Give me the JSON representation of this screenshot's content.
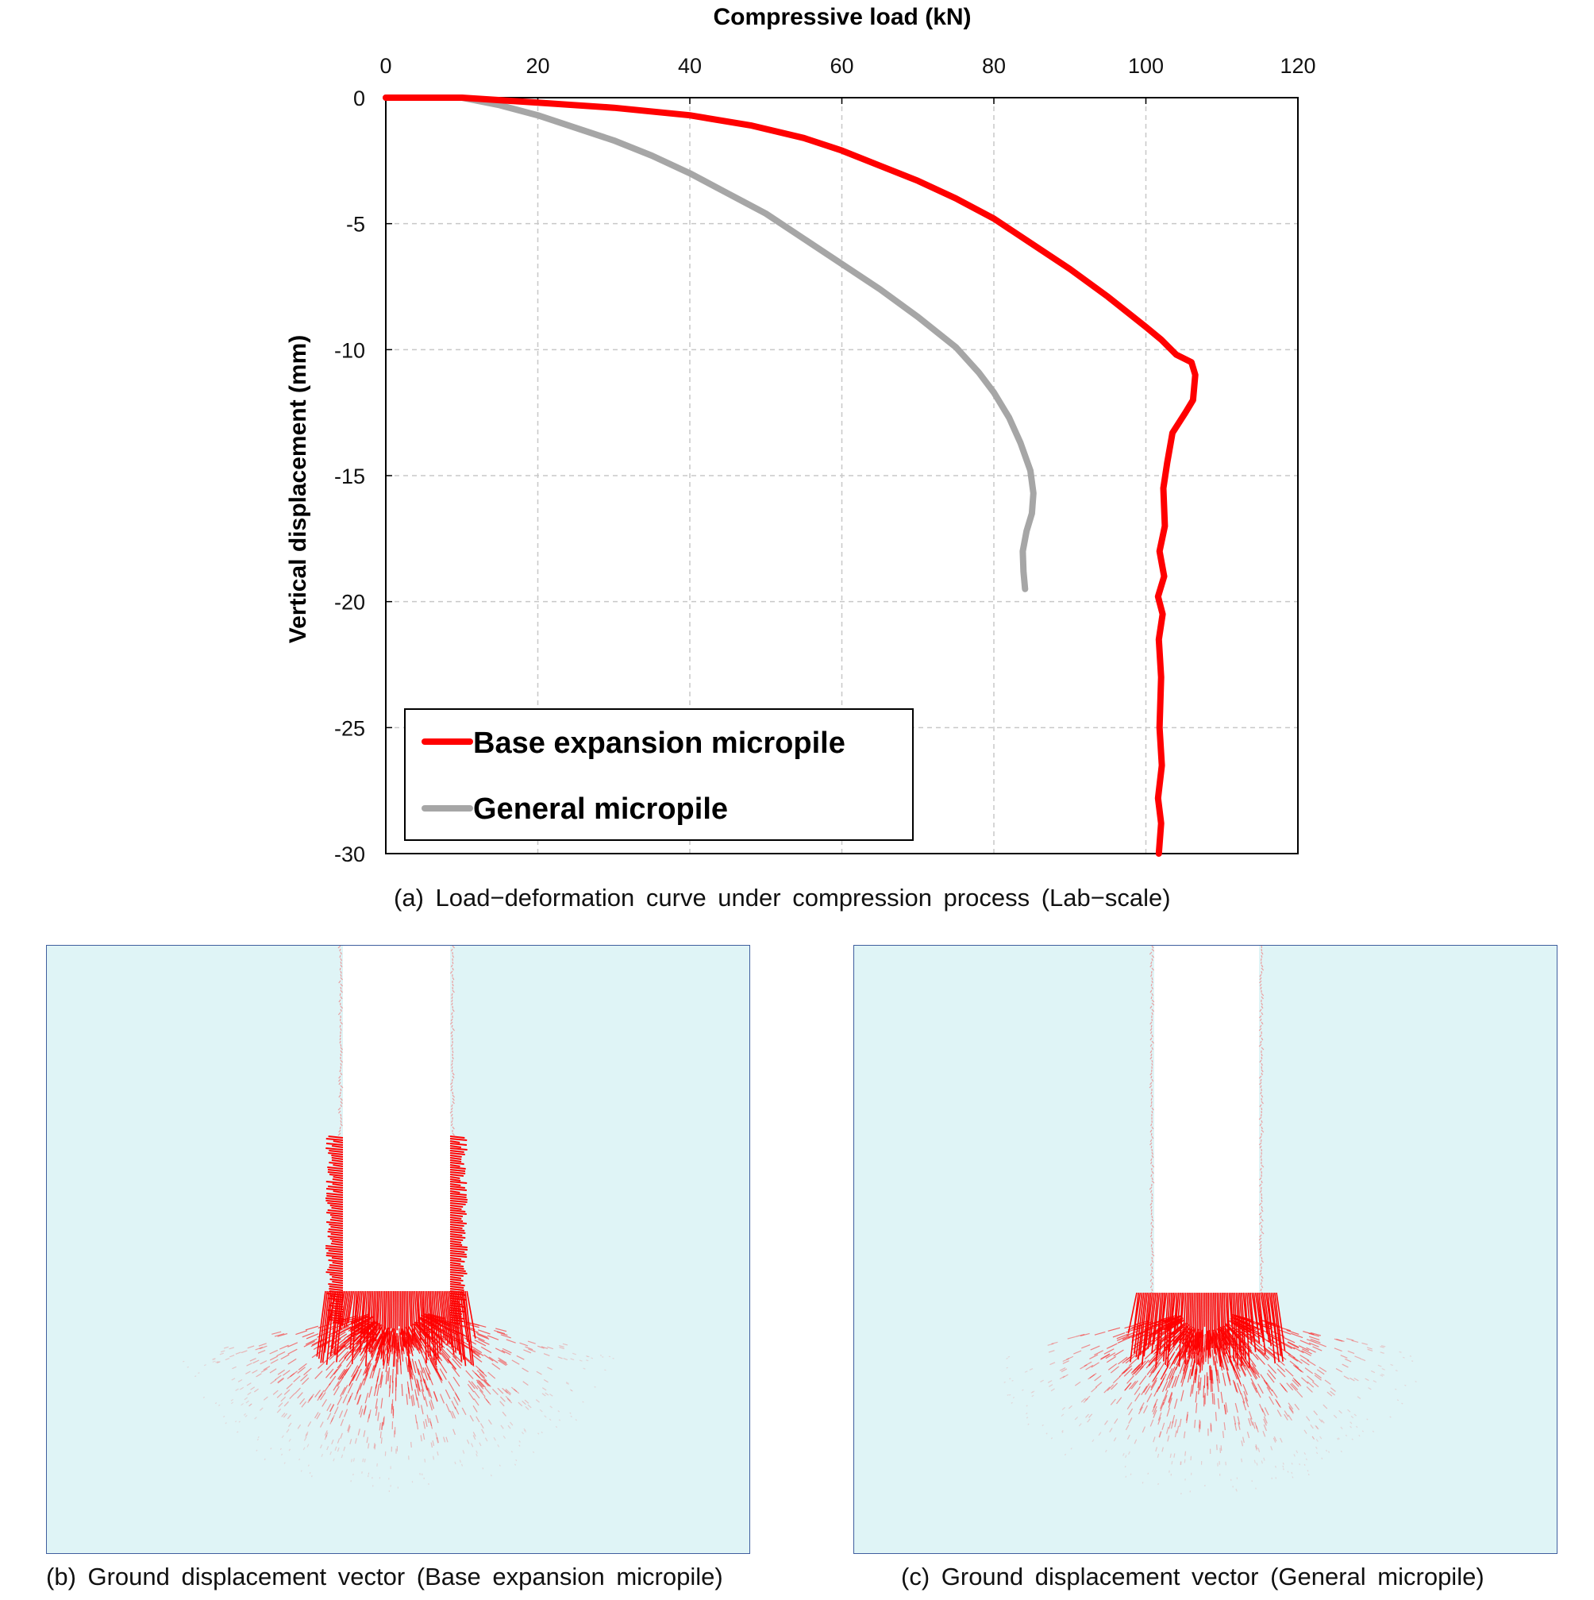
{
  "chart_data": {
    "type": "line",
    "xlabel": "Compressive load (kN)",
    "ylabel": "Vertical displacement (mm)",
    "xlim": [
      0,
      120
    ],
    "ylim": [
      -30,
      0
    ],
    "x_ticks": [
      "0",
      "20",
      "40",
      "60",
      "80",
      "100",
      "120"
    ],
    "y_ticks": [
      "0",
      "-5",
      "-10",
      "-15",
      "-20",
      "-25",
      "-30"
    ],
    "x_axis_position": "top",
    "grid": true,
    "legend_position": "bottom-left",
    "series": [
      {
        "name": "Base expansion micropile",
        "color": "#ff0000",
        "x": [
          0,
          10,
          20,
          30,
          40,
          48,
          55,
          60,
          65,
          70,
          75,
          80,
          85,
          90,
          95,
          100,
          102,
          104,
          106,
          106.5,
          106.2,
          105.2,
          103.5,
          102.8,
          102.3,
          102.5,
          101.8,
          102.4,
          101.6,
          102.2,
          101.7,
          102.0,
          101.8,
          102.1,
          101.6,
          102.0,
          101.7
        ],
        "y": [
          0,
          0,
          -0.2,
          -0.4,
          -0.7,
          -1.1,
          -1.6,
          -2.1,
          -2.7,
          -3.3,
          -4.0,
          -4.8,
          -5.8,
          -6.8,
          -7.9,
          -9.1,
          -9.6,
          -10.2,
          -10.5,
          -11.0,
          -12.0,
          -12.5,
          -13.3,
          -14.5,
          -15.5,
          -17.0,
          -18.0,
          -19.0,
          -19.8,
          -20.5,
          -21.5,
          -23.0,
          -25.0,
          -26.5,
          -27.8,
          -28.8,
          -30.0
        ]
      },
      {
        "name": "General micropile",
        "color": "#a6a6a6",
        "x": [
          0,
          5,
          10,
          15,
          20,
          25,
          30,
          35,
          40,
          45,
          50,
          55,
          60,
          65,
          70,
          75,
          78,
          80,
          82,
          83.5,
          84.8,
          85.2,
          85.0,
          84.3,
          83.8,
          83.9,
          84.1
        ],
        "y": [
          0,
          0,
          0,
          -0.3,
          -0.7,
          -1.2,
          -1.7,
          -2.3,
          -3.0,
          -3.8,
          -4.6,
          -5.6,
          -6.6,
          -7.6,
          -8.7,
          -9.9,
          -10.9,
          -11.7,
          -12.7,
          -13.7,
          -14.8,
          -15.7,
          -16.5,
          -17.2,
          -18.0,
          -18.8,
          -19.5
        ]
      }
    ]
  },
  "captions": {
    "a": "(a) Load−deformation curve under compression process (Lab−scale)",
    "b": "(b) Ground displacement vector (Base expansion micropile)",
    "c": "(c) Ground displacement vector (General micropile)"
  },
  "panels": {
    "background_color": "#dff4f6",
    "border_color": "#3f5e9e",
    "vector_color": "#ff0000",
    "pile_color": "#ffffff"
  }
}
